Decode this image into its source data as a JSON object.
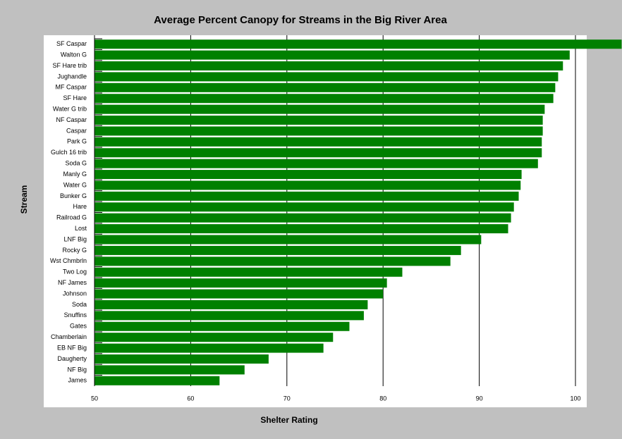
{
  "chart_data": {
    "type": "bar",
    "orientation": "horizontal",
    "title": "Average Percent Canopy for Streams in the Big River Area",
    "xlabel": "Shelter Rating",
    "ylabel": "Stream",
    "categories": [
      "SF Caspar",
      "Walton G",
      "SF Hare trib",
      "Jughandle",
      "MF Caspar",
      "SF Hare",
      "Water G trib",
      "NF Caspar",
      "Caspar",
      "Park G",
      "Gulch 16 trib",
      "Soda G",
      "Manly G",
      "Water G",
      "Bunker G",
      "Hare",
      "Railroad G",
      "Lost",
      "LNF Big",
      "Rocky G",
      "Wst Chmbrln",
      "Two Log",
      "NF James",
      "Johnson",
      "Soda",
      "Snuffins",
      "Gates",
      "Chamberlain",
      "EB NF Big",
      "Daugherty",
      "NF Big",
      "James"
    ],
    "values": [
      104.8,
      99.4,
      98.7,
      98.2,
      97.9,
      97.7,
      96.8,
      96.6,
      96.6,
      96.5,
      96.5,
      96.1,
      94.4,
      94.3,
      94.1,
      93.6,
      93.3,
      93.0,
      90.2,
      88.1,
      87.0,
      82.0,
      80.4,
      80.0,
      78.4,
      78.0,
      76.5,
      74.8,
      73.8,
      68.1,
      65.6,
      63.0
    ],
    "color": "#008000",
    "xlim": [
      50,
      100
    ],
    "xticks": [
      50,
      60,
      70,
      80,
      90,
      100
    ],
    "grid": true
  }
}
